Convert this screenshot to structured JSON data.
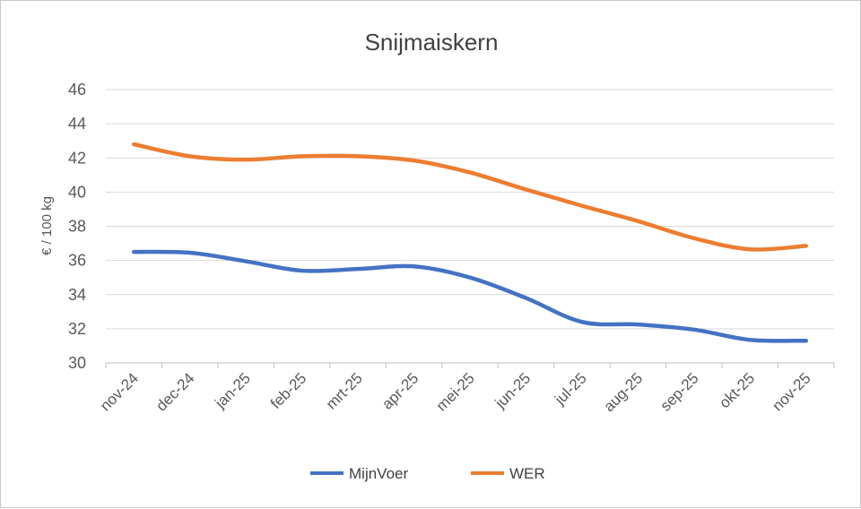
{
  "chart_data": {
    "type": "line",
    "title": "Snijmaiskern",
    "xlabel": "",
    "ylabel": "€ / 100 kg",
    "ylim": [
      30,
      46
    ],
    "yticks": [
      30,
      32,
      34,
      36,
      38,
      40,
      42,
      44,
      46
    ],
    "grid": true,
    "legend_position": "bottom",
    "categories": [
      "nov-24",
      "dec-24",
      "jan-25",
      "feb-25",
      "mrt-25",
      "apr-25",
      "mei-25",
      "jun-25",
      "jul-25",
      "aug-25",
      "sep-25",
      "okt-25",
      "nov-25"
    ],
    "series": [
      {
        "name": "MijnVoer",
        "color": "#4472c4",
        "values": [
          36.5,
          36.45,
          35.95,
          35.4,
          35.5,
          35.65,
          35.0,
          33.8,
          32.4,
          32.25,
          31.95,
          31.35,
          31.3
        ]
      },
      {
        "name": "WER",
        "color": "#ed7d31",
        "values": [
          42.8,
          42.1,
          41.9,
          42.1,
          42.1,
          41.85,
          41.15,
          40.15,
          39.2,
          38.3,
          37.3,
          36.65,
          36.85
        ]
      }
    ]
  }
}
